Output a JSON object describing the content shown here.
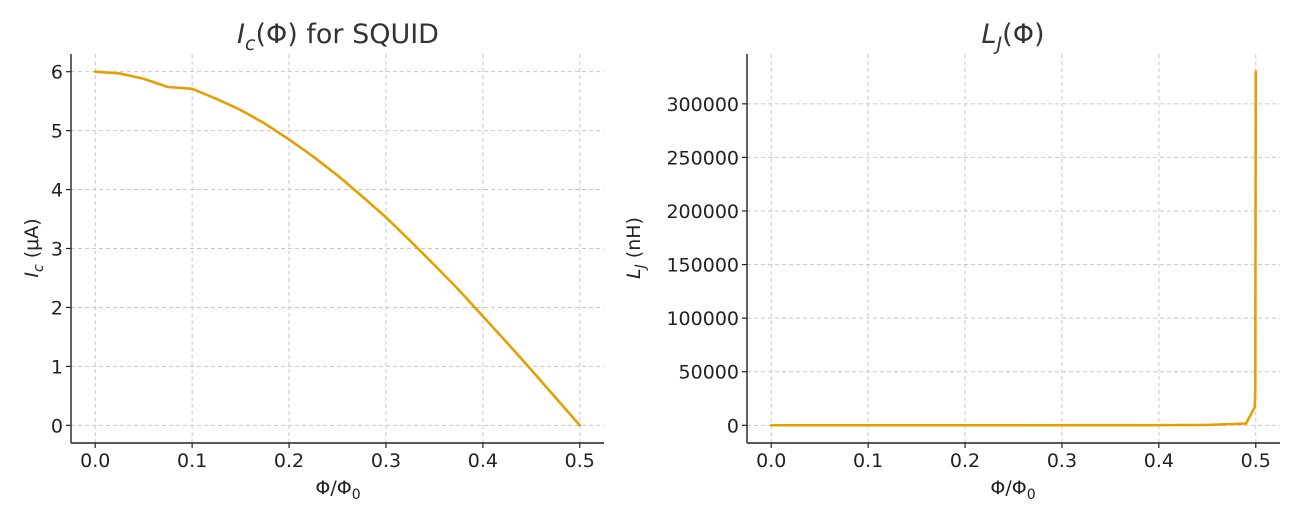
{
  "colors": {
    "series": "#e69f00"
  },
  "chart_data": [
    {
      "type": "line",
      "title": {
        "main": "I",
        "sub": "c",
        "rest": "(Φ) for SQUID"
      },
      "xlabel": {
        "main": "Φ/Φ",
        "sub": "0"
      },
      "ylabel": {
        "main": "I",
        "sub": "c",
        "rest": " (μA)"
      },
      "xlim": [
        -0.025,
        0.525
      ],
      "ylim": [
        -0.3,
        6.3
      ],
      "xticks": [
        0.0,
        0.1,
        0.2,
        0.3,
        0.4,
        0.5
      ],
      "xtick_labels": [
        "0.0",
        "0.1",
        "0.2",
        "0.3",
        "0.4",
        "0.5"
      ],
      "yticks": [
        0,
        1,
        2,
        3,
        4,
        5,
        6
      ],
      "ytick_labels": [
        "0",
        "1",
        "2",
        "3",
        "4",
        "5",
        "6"
      ],
      "grid": true,
      "series": [
        {
          "x": [
            0.0,
            0.025,
            0.05,
            0.075,
            0.1,
            0.125,
            0.15,
            0.175,
            0.2,
            0.225,
            0.25,
            0.275,
            0.3,
            0.325,
            0.35,
            0.375,
            0.4,
            0.425,
            0.45,
            0.475,
            0.5
          ],
          "y": [
            6.0,
            5.97,
            5.88,
            5.74,
            5.71,
            5.54,
            5.35,
            5.12,
            4.85,
            4.56,
            4.24,
            3.89,
            3.53,
            3.13,
            2.72,
            2.3,
            1.85,
            1.4,
            0.94,
            0.47,
            0.0
          ]
        }
      ]
    },
    {
      "type": "line",
      "title": {
        "main": "L",
        "sub": "J",
        "rest": "(Φ)"
      },
      "xlabel": {
        "main": "Φ/Φ",
        "sub": "0"
      },
      "ylabel": {
        "main": "L",
        "sub": "J",
        "rest": " (nH)"
      },
      "xlim": [
        -0.025,
        0.525
      ],
      "ylim": [
        -16500,
        346500
      ],
      "xticks": [
        0.0,
        0.1,
        0.2,
        0.3,
        0.4,
        0.5
      ],
      "xtick_labels": [
        "0.0",
        "0.1",
        "0.2",
        "0.3",
        "0.4",
        "0.5"
      ],
      "yticks": [
        0,
        50000,
        100000,
        150000,
        200000,
        250000,
        300000
      ],
      "ytick_labels": [
        "0",
        "50000",
        "100000",
        "150000",
        "200000",
        "250000",
        "300000"
      ],
      "grid": true,
      "series": [
        {
          "x": [
            0.0,
            0.1,
            0.2,
            0.3,
            0.4,
            0.45,
            0.49,
            0.499,
            0.4995,
            0.5
          ],
          "y": [
            55,
            60,
            68,
            85,
            180,
            350,
            1700,
            17000,
            34000,
            330000
          ]
        }
      ]
    }
  ]
}
